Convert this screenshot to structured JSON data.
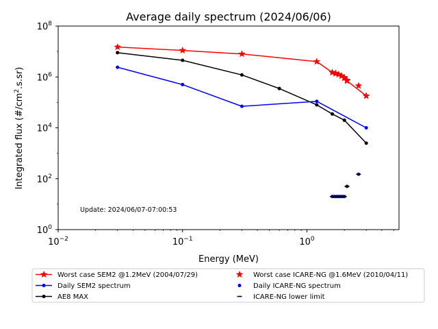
{
  "chart_data": {
    "type": "line",
    "title": "Average daily spectrum (2024/06/06)",
    "xlabel": "Energy (MeV)",
    "ylabel_main": "Integrated flux (#/cm",
    "ylabel_sup": "2",
    "ylabel_tail": ".s.sr)",
    "x_scale": "log",
    "y_scale": "log",
    "xlim": [
      0.01,
      5.5
    ],
    "ylim": [
      1,
      100000000
    ],
    "grid": false,
    "x_ticks": [
      {
        "value": 0.01,
        "base": "10",
        "exp": "−2"
      },
      {
        "value": 0.1,
        "base": "10",
        "exp": "−1"
      },
      {
        "value": 1,
        "base": "10",
        "exp": "0"
      }
    ],
    "y_ticks": [
      {
        "value": 1,
        "base": "10",
        "exp": "0"
      },
      {
        "value": 100,
        "base": "10",
        "exp": "2"
      },
      {
        "value": 10000,
        "base": "10",
        "exp": "4"
      },
      {
        "value": 1000000,
        "base": "10",
        "exp": "6"
      },
      {
        "value": 100000000,
        "base": "10",
        "exp": "8"
      }
    ],
    "annotation": "Update: 2024/06/07-07:00:53",
    "series": [
      {
        "name": "Worst case SEM2 @1.2MeV (2004/07/29)",
        "color": "#ff0000",
        "marker": "star",
        "line": true,
        "x": [
          0.03,
          0.1,
          0.3,
          1.2,
          1.6,
          1.7,
          1.8,
          1.9,
          2.0,
          2.1,
          3.0
        ],
        "y": [
          15000000,
          11000000,
          8000000,
          4000000,
          1500000,
          1400000,
          1250000,
          1100000,
          900000,
          700000,
          180000
        ]
      },
      {
        "name": "Daily SEM2 spectrum",
        "color": "#0000ff",
        "marker": "dot",
        "line": true,
        "x": [
          0.03,
          0.1,
          0.3,
          1.2,
          3.0
        ],
        "y": [
          2400000,
          500000,
          70000,
          110000,
          10000
        ]
      },
      {
        "name": "AE8 MAX",
        "color": "#000000",
        "marker": "dot",
        "line": true,
        "x": [
          0.03,
          0.1,
          0.3,
          0.6,
          1.2,
          1.6,
          2.0,
          3.0
        ],
        "y": [
          9000000,
          4500000,
          1200000,
          350000,
          80000,
          35000,
          20000,
          2500
        ]
      },
      {
        "name": "Worst case ICARE-NG @1.6MeV (2010/04/11)",
        "color": "#ff0000",
        "marker": "star",
        "line": false,
        "x": [
          1.6,
          1.7,
          1.8,
          1.9,
          2.0,
          2.1,
          2.6,
          3.0
        ],
        "y": [
          1500000,
          1350000,
          1250000,
          1100000,
          950000,
          750000,
          450000,
          180000
        ]
      },
      {
        "name": "Daily ICARE-NG spectrum",
        "color": "#0000ff",
        "marker": "dot",
        "line": false,
        "x": [
          1.6,
          1.65,
          1.7,
          1.75,
          1.8,
          1.85,
          1.9,
          1.95,
          2.0,
          2.1,
          2.6
        ],
        "y": [
          20,
          20,
          20,
          20,
          20,
          20,
          20,
          20,
          20,
          50,
          150
        ]
      },
      {
        "name": "ICARE-NG lower limit",
        "color": "#000000",
        "marker": "dash",
        "line": false,
        "x": [
          1.6,
          1.65,
          1.7,
          1.75,
          1.8,
          1.85,
          1.9,
          1.95,
          2.0,
          2.1,
          2.6
        ],
        "y": [
          20,
          20,
          20,
          20,
          20,
          20,
          20,
          20,
          20,
          50,
          150
        ]
      }
    ],
    "legend": {
      "placement": "bottom",
      "columns": 2,
      "order": [
        0,
        3,
        1,
        4,
        2,
        5
      ]
    }
  }
}
